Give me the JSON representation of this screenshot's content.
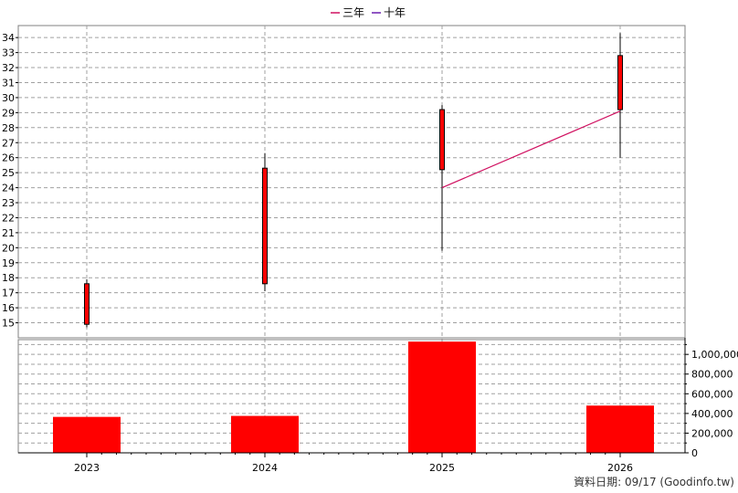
{
  "chart_data": {
    "type": "candlestick",
    "legend": [
      {
        "name": "三年",
        "color": "#d01060"
      },
      {
        "name": "十年",
        "color": "#6a1fb0"
      }
    ],
    "categories": [
      "2023",
      "2024",
      "2025",
      "2026"
    ],
    "price": {
      "ylim": [
        14,
        34.8
      ],
      "ticks": [
        15,
        16,
        17,
        18,
        19,
        20,
        21,
        22,
        23,
        24,
        25,
        26,
        27,
        28,
        29,
        30,
        31,
        32,
        33,
        34
      ],
      "candles": [
        {
          "x": "2023",
          "open": 17.6,
          "close": 14.9,
          "high": 17.9,
          "low": 14.7
        },
        {
          "x": "2024",
          "open": 25.3,
          "close": 17.6,
          "high": 26.3,
          "low": 17.1
        },
        {
          "x": "2025",
          "open": 29.2,
          "close": 25.2,
          "high": 29.5,
          "low": 19.8
        },
        {
          "x": "2026",
          "open": 32.8,
          "close": 29.2,
          "high": 34.3,
          "low": 26.0
        }
      ],
      "ma_three_year": [
        {
          "x": "2025",
          "y": 24.0
        },
        {
          "x": "2026",
          "y": 29.1
        }
      ]
    },
    "volume": {
      "ylim": [
        0,
        1150000
      ],
      "ticks": [
        0,
        200000,
        400000,
        600000,
        800000,
        1000000
      ],
      "tick_labels": [
        "0",
        "200,000",
        "400,000",
        "600,000",
        "800,000",
        "1,000,000"
      ],
      "values": [
        365000,
        375000,
        1130000,
        480000
      ]
    },
    "grid": true,
    "colors": {
      "candle": "#ff0000",
      "volume": "#ff0000",
      "grid": "#a0a0a0"
    }
  },
  "footer": {
    "text": "資料日期: 09/17  (Goodinfo.tw)"
  }
}
